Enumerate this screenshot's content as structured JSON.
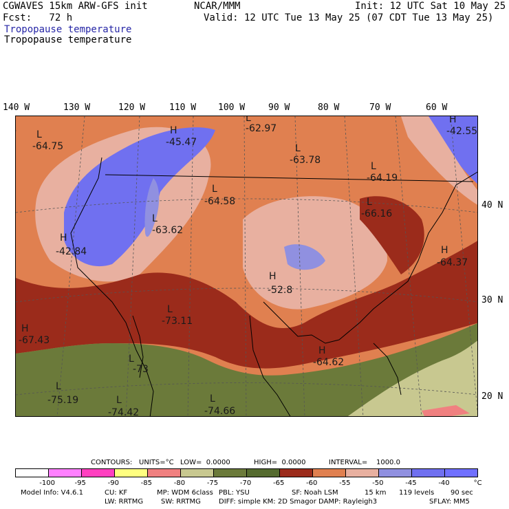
{
  "header": {
    "model": "CGWAVES 15km ARW-GFS init",
    "source": "NCAR/MMM",
    "init": "Init: 12 UTC Sat 10 May 25",
    "fcst": "Fcst:   72 h",
    "valid": "Valid: 12 UTC Tue 13 May 25 (07 CDT Tue 13 May 25)",
    "field_colored": "Tropopause temperature",
    "field_contoured": "Tropopause temperature"
  },
  "longitude_labels": [
    "140 W",
    "130 W",
    "120 W",
    "110 W",
    "100 W",
    "90 W",
    "80 W",
    "70 W",
    "60 W"
  ],
  "latitude_labels": [
    "40 N",
    "30 N",
    "20 N"
  ],
  "map_labels": [
    {
      "type": "L",
      "value": "-64.75"
    },
    {
      "type": "H",
      "value": "-45.47"
    },
    {
      "type": "L",
      "value": "-62.97"
    },
    {
      "type": "H",
      "value": "-42.55"
    },
    {
      "type": "L",
      "value": "-63.78"
    },
    {
      "type": "L",
      "value": "-64.19"
    },
    {
      "type": "L",
      "value": "-64.58"
    },
    {
      "type": "L",
      "value": "-66.16"
    },
    {
      "type": "L",
      "value": "-63.62"
    },
    {
      "type": "H",
      "value": "-42.84"
    },
    {
      "type": "H",
      "value": "-64.37"
    },
    {
      "type": "H",
      "value": "-52.8"
    },
    {
      "type": "L",
      "value": "-73.11"
    },
    {
      "type": "H",
      "value": "-67.43"
    },
    {
      "type": "H",
      "value": "-64.62"
    },
    {
      "type": "L",
      "value": "-73"
    },
    {
      "type": "L",
      "value": "-75.19"
    },
    {
      "type": "L",
      "value": "-74.42"
    },
    {
      "type": "L",
      "value": "-74.66"
    }
  ],
  "contour_info": {
    "label": "CONTOURS:",
    "units": "UNITS=°C",
    "low": "LOW=  0.0000",
    "high": "HIGH=  0.0000",
    "interval": "INTERVAL=    1000.0"
  },
  "colorbar": {
    "colors": [
      "#ffffff",
      "#ff80ff",
      "#ff40c0",
      "#ffff80",
      "#f08080",
      "#c8c890",
      "#6b7a3a",
      "#556b2f",
      "#9b2b1b",
      "#e08050",
      "#e8b0a0",
      "#9090e0",
      "#7070f0",
      "#7070ff"
    ],
    "ticks": [
      "-100",
      "-95",
      "-90",
      "-85",
      "-80",
      "-75",
      "-70",
      "-65",
      "-60",
      "-55",
      "-50",
      "-45",
      "-40",
      "°C"
    ]
  },
  "footer": {
    "line1_model_info": "Model Info: V4.6.1",
    "line1_cu": "CU: KF",
    "line1_mp": "MP: WDM 6class",
    "line1_pbl": "PBL: YSU",
    "line1_sf": "SF: Noah LSM",
    "line1_res": "15 km",
    "line1_levels": "119 levels",
    "line1_dt": "90 sec",
    "line2_lw": "LW: RRTMG",
    "line2_sw": "SW: RRTMG",
    "line2_diff": "DIFF: simple KM: 2D Smagor DAMP: Rayleigh3",
    "line2_sflay": "SFLAY: MM5"
  }
}
